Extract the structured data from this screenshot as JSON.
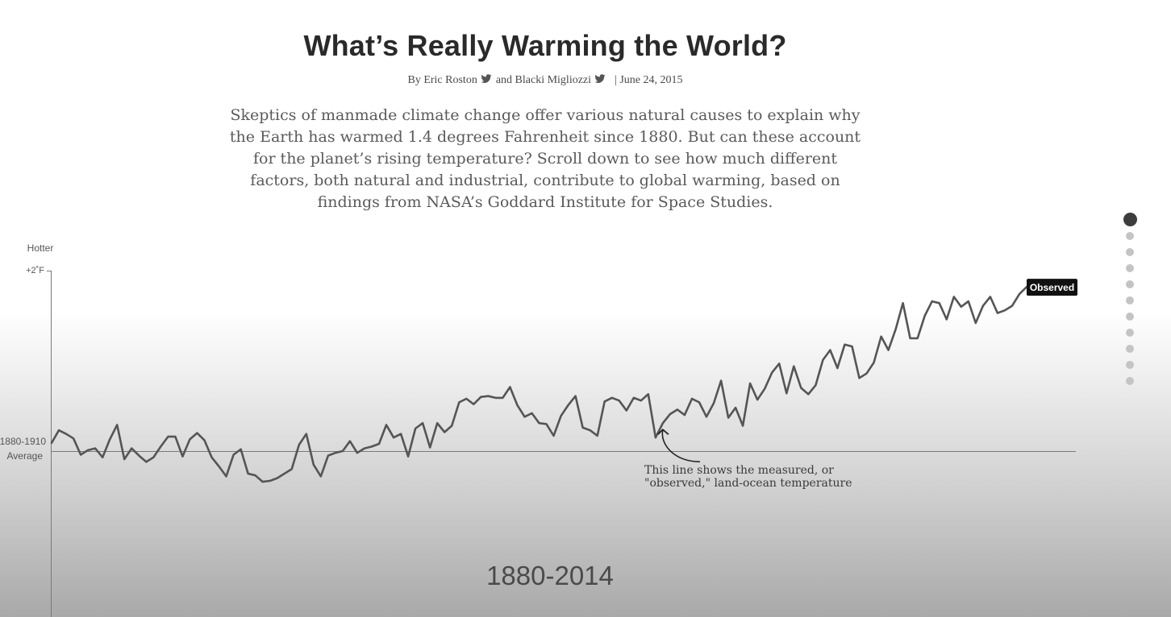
{
  "article": {
    "title": "What’s Really Warming the World?",
    "byline": {
      "prefix": "By Eric Roston",
      "second_author": "and Blacki Migliozzi",
      "date": "| June 24, 2015",
      "share_icon": "twitter-bird-icon"
    },
    "dek": "Skeptics of manmade climate change offer various natural causes to explain why the Earth has warmed 1.4 degrees Fahrenheit since 1880. But can these account for the planet’s rising temperature? Scroll down to see how much different factors, both natural and industrial, contribute to global warming, based on findings from NASA’s Goddard Institute for Space Studies."
  },
  "nav": {
    "total_steps": 11,
    "active_step": 1
  },
  "colors": {
    "line": "#555555",
    "axis": "#7a7a7a",
    "tag_bg": "#111111",
    "tag_text": "#ffffff"
  },
  "chart_data": {
    "type": "line",
    "y_label_top": "Hotter",
    "y_tick_top": "+2˚F",
    "baseline_label_line1": "1880-1910",
    "baseline_label_line2": "Average",
    "period_label": "1880-2014",
    "x_range": [
      1880,
      2014
    ],
    "y_range": [
      -1.5,
      2
    ],
    "series": [
      {
        "name": "Observed",
        "x_start": 1880,
        "values": [
          0.09,
          0.23,
          0.19,
          0.14,
          -0.04,
          0.01,
          0.03,
          -0.07,
          0.13,
          0.29,
          -0.09,
          0.03,
          -0.05,
          -0.12,
          -0.07,
          0.05,
          0.16,
          0.16,
          -0.06,
          0.13,
          0.2,
          0.12,
          -0.07,
          -0.17,
          -0.28,
          -0.04,
          0.02,
          -0.25,
          -0.27,
          -0.34,
          -0.33,
          -0.3,
          -0.25,
          -0.2,
          0.07,
          0.19,
          -0.15,
          -0.28,
          -0.05,
          -0.02,
          0.0,
          0.11,
          -0.02,
          0.03,
          0.05,
          0.08,
          0.29,
          0.15,
          0.19,
          -0.06,
          0.25,
          0.31,
          0.04,
          0.31,
          0.21,
          0.28,
          0.54,
          0.58,
          0.52,
          0.6,
          0.61,
          0.59,
          0.59,
          0.71,
          0.51,
          0.38,
          0.42,
          0.31,
          0.3,
          0.17,
          0.39,
          0.51,
          0.61,
          0.26,
          0.23,
          0.17,
          0.55,
          0.59,
          0.56,
          0.45,
          0.59,
          0.56,
          0.63,
          0.15,
          0.31,
          0.41,
          0.46,
          0.4,
          0.58,
          0.54,
          0.38,
          0.53,
          0.78,
          0.37,
          0.48,
          0.28,
          0.75,
          0.57,
          0.69,
          0.87,
          0.97,
          0.64,
          0.94,
          0.7,
          0.63,
          0.73,
          1.01,
          1.12,
          0.92,
          1.18,
          1.16,
          0.81,
          0.86,
          0.98,
          1.27,
          1.12,
          1.35,
          1.64,
          1.25,
          1.25,
          1.5,
          1.66,
          1.64,
          1.46,
          1.71,
          1.6,
          1.66,
          1.42,
          1.61,
          1.71,
          1.53,
          1.56,
          1.61,
          1.74,
          1.82
        ]
      }
    ],
    "annotation": {
      "text_line1": "This line shows the measured, or",
      "text_line2": "\"observed,\" land-ocean temperature",
      "target_year": 1964
    },
    "end_tag": "Observed",
    "grid": false
  }
}
